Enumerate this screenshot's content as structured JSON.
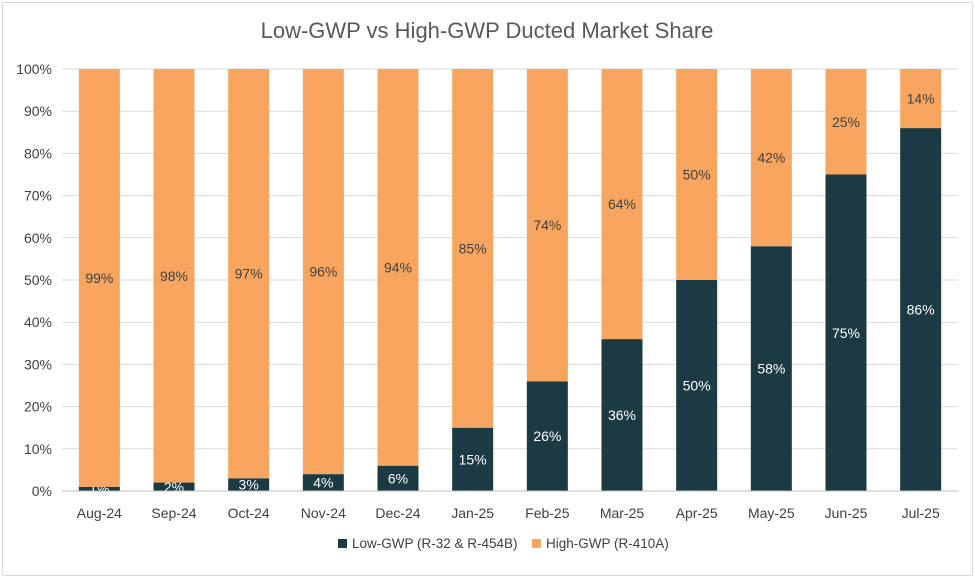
{
  "chart_data": {
    "type": "bar",
    "stacked": true,
    "title": "Low-GWP vs High-GWP Ducted Market Share",
    "xlabel": "",
    "ylabel": "",
    "ylim": [
      0,
      100
    ],
    "yticks": [
      "0%",
      "10%",
      "20%",
      "30%",
      "40%",
      "50%",
      "60%",
      "70%",
      "80%",
      "90%",
      "100%"
    ],
    "grid": true,
    "legend_position": "bottom",
    "categories": [
      "Aug-24",
      "Sep-24",
      "Oct-24",
      "Nov-24",
      "Dec-24",
      "Jan-25",
      "Feb-25",
      "Mar-25",
      "Apr-25",
      "May-25",
      "Jun-25",
      "Jul-25"
    ],
    "series": [
      {
        "name": "Low-GWP (R-32 & R-454B)",
        "color": "#1b3a44",
        "label_color": "#ffffff",
        "values": [
          1,
          2,
          3,
          4,
          6,
          15,
          26,
          36,
          50,
          58,
          75,
          86
        ],
        "labels": [
          "1%",
          "2%",
          "3%",
          "4%",
          "6%",
          "15%",
          "26%",
          "36%",
          "50%",
          "58%",
          "75%",
          "86%"
        ]
      },
      {
        "name": "High-GWP (R-410A)",
        "color": "#f8a65f",
        "label_color": "#404040",
        "values": [
          99,
          98,
          97,
          96,
          94,
          85,
          74,
          64,
          50,
          42,
          25,
          14
        ],
        "labels": [
          "99%",
          "98%",
          "97%",
          "96%",
          "94%",
          "85%",
          "74%",
          "64%",
          "50%",
          "42%",
          "25%",
          "14%"
        ]
      }
    ]
  }
}
